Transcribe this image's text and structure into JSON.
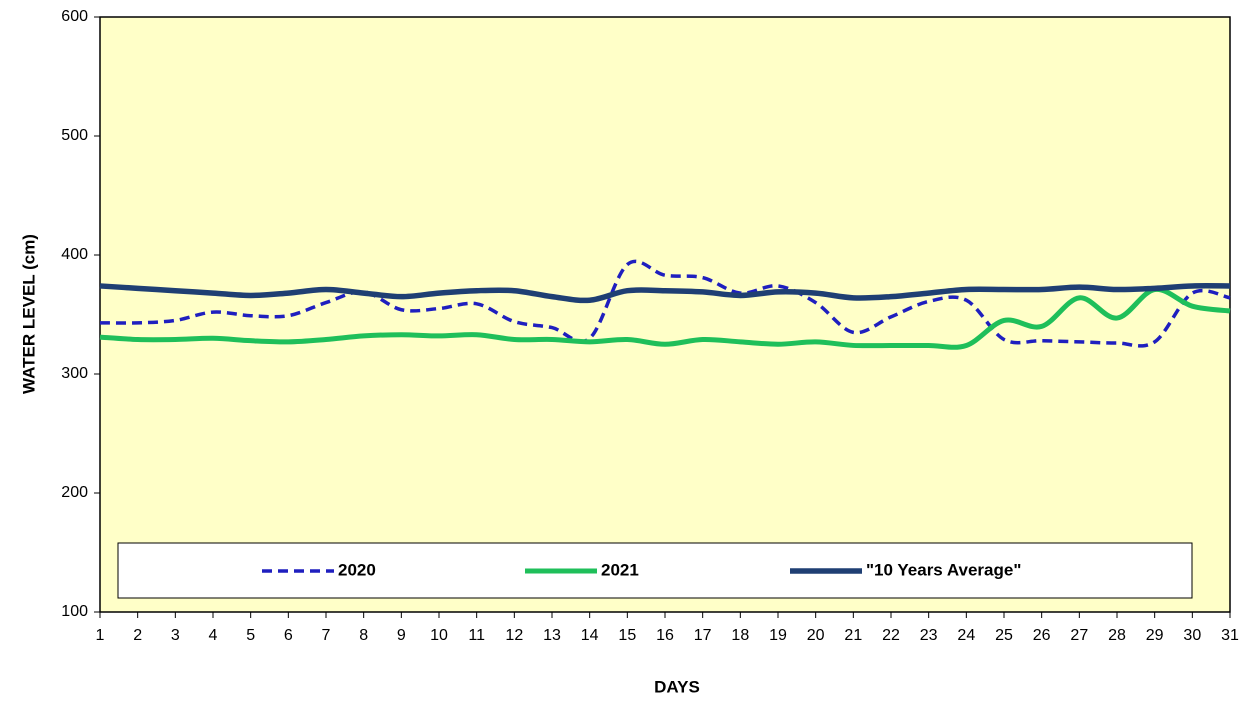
{
  "chart_data": {
    "type": "line",
    "x_label": "DAYS",
    "y_label": "WATER LEVEL (cm)",
    "x": [
      1,
      2,
      3,
      4,
      5,
      6,
      7,
      8,
      9,
      10,
      11,
      12,
      13,
      14,
      15,
      16,
      17,
      18,
      19,
      20,
      21,
      22,
      23,
      24,
      25,
      26,
      27,
      28,
      29,
      30,
      31
    ],
    "xlim": [
      1,
      31
    ],
    "xticks": [
      1,
      2,
      3,
      4,
      5,
      6,
      7,
      8,
      9,
      10,
      11,
      12,
      13,
      14,
      15,
      16,
      17,
      18,
      19,
      20,
      21,
      22,
      23,
      24,
      25,
      26,
      27,
      28,
      29,
      30,
      31
    ],
    "ylim": [
      100,
      600
    ],
    "yticks": [
      100,
      200,
      300,
      400,
      500,
      600
    ],
    "grid": false,
    "legend": "bottom",
    "background": "#ffffc8",
    "smooth": true,
    "series": [
      {
        "name": "2020",
        "color": "#1f1fbf",
        "dashed": true,
        "width": 3.5,
        "values": [
          343,
          343,
          345,
          352,
          349,
          349,
          360,
          369,
          354,
          355,
          359,
          344,
          339,
          330,
          392,
          383,
          381,
          368,
          374,
          360,
          335,
          348,
          361,
          362,
          329,
          328,
          327,
          326,
          327,
          368,
          364
        ]
      },
      {
        "name": "2021",
        "color": "#1fbf5a",
        "dashed": false,
        "width": 5,
        "values": [
          331,
          329,
          329,
          330,
          328,
          327,
          329,
          332,
          333,
          332,
          333,
          329,
          329,
          327,
          329,
          325,
          329,
          327,
          325,
          327,
          324,
          324,
          324,
          324,
          345,
          340,
          364,
          347,
          371,
          357,
          353
        ]
      },
      {
        "name": "\"10 Years Average\"",
        "color": "#1f3f73",
        "dashed": false,
        "width": 5.5,
        "values": [
          374,
          372,
          370,
          368,
          366,
          368,
          371,
          368,
          365,
          368,
          370,
          370,
          365,
          362,
          370,
          370,
          369,
          366,
          369,
          368,
          364,
          365,
          368,
          371,
          371,
          371,
          373,
          371,
          372,
          374,
          374
        ]
      }
    ]
  }
}
